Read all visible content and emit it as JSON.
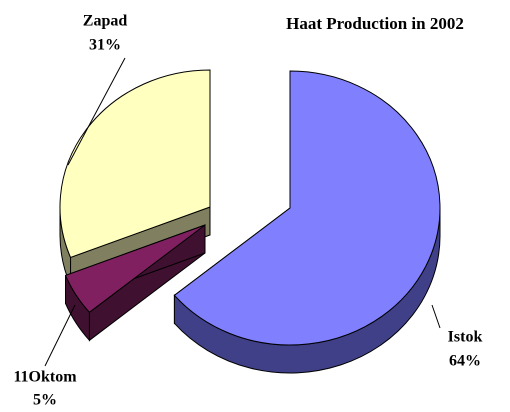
{
  "chart_data": {
    "type": "pie",
    "title": "Haat Production in 2002",
    "categories": [
      "Istok",
      "11Oktom",
      "Zapad"
    ],
    "values": [
      64,
      5,
      31
    ],
    "value_labels": [
      "64%",
      "5%",
      "31%"
    ],
    "colors": [
      "#8080ff",
      "#802060",
      "#ffffc0"
    ],
    "side_colors": [
      "#404088",
      "#401030",
      "#808060"
    ]
  }
}
